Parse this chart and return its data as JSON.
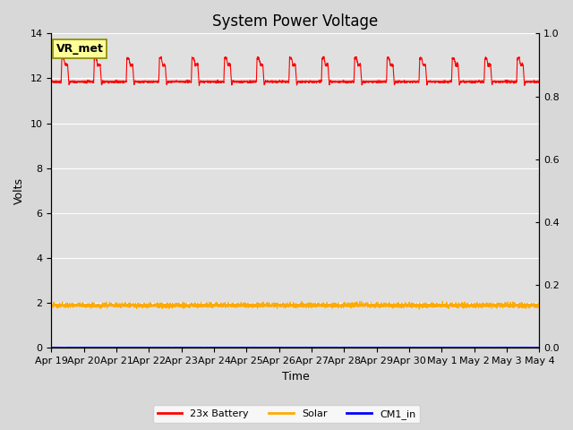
{
  "title": "System Power Voltage",
  "xlabel": "Time",
  "ylabel": "Volts",
  "ylim_left": [
    0,
    14
  ],
  "ylim_right": [
    0.0,
    1.0
  ],
  "yticks_left": [
    0,
    2,
    4,
    6,
    8,
    10,
    12,
    14
  ],
  "yticks_right": [
    0.0,
    0.2,
    0.4,
    0.6,
    0.8,
    1.0
  ],
  "xtick_labels": [
    "Apr 19",
    "Apr 20",
    "Apr 21",
    "Apr 22",
    "Apr 23",
    "Apr 24",
    "Apr 25",
    "Apr 26",
    "Apr 27",
    "Apr 28",
    "Apr 29",
    "Apr 30",
    "May 1",
    "May 2",
    "May 3",
    "May 4"
  ],
  "background_color": "#d8d8d8",
  "plot_bg_color": "#e0e0e0",
  "grid_color": "#ffffff",
  "battery_color": "#ff0000",
  "solar_color": "#ffaa00",
  "cm1_color": "#0000ff",
  "annotation_text": "VR_met",
  "annotation_bg": "#ffff99",
  "annotation_border": "#888800",
  "legend_labels": [
    "23x Battery",
    "Solar",
    "CM1_in"
  ],
  "legend_colors": [
    "#ff0000",
    "#ffaa00",
    "#0000ff"
  ],
  "battery_base": 11.85,
  "battery_low": 11.75,
  "battery_peak1": 12.9,
  "battery_peak2": 12.6,
  "solar_base": 1.9,
  "cm1_value": 0.02,
  "title_fontsize": 12,
  "label_fontsize": 9,
  "tick_fontsize": 8,
  "figwidth": 6.4,
  "figheight": 4.8,
  "dpi": 100
}
